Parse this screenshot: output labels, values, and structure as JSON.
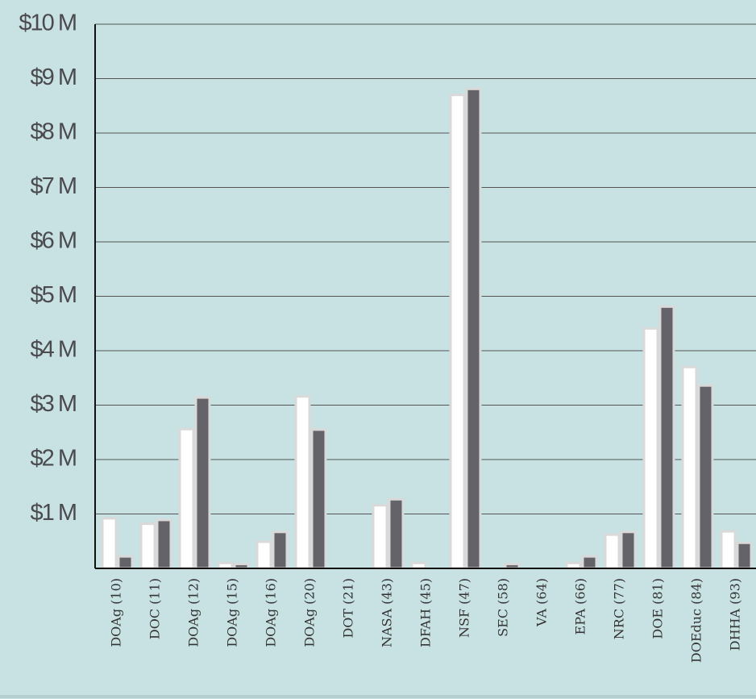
{
  "chart_data": {
    "type": "bar",
    "categories": [
      "DOAg (10)",
      "DOC (11)",
      "DOAg (12)",
      "DOAg (15)",
      "DOAg (16)",
      "DOAg (20)",
      "DOT (21)",
      "NASA (43)",
      "DFAH (45)",
      "NSF (47)",
      "SEC (58)",
      "VA (64)",
      "EPA (66)",
      "NRC (77)",
      "DOE (81)",
      "DOEduc (84)",
      "DHHA (93)"
    ],
    "series": [
      {
        "color": "#ffffff",
        "values": [
          0.92,
          0.82,
          2.56,
          0.1,
          0.49,
          3.16,
          0,
          1.16,
          0.1,
          8.7,
          0,
          0,
          0.1,
          0.62,
          4.41,
          3.7,
          0.68
        ]
      },
      {
        "color": "#636369",
        "values": [
          0.22,
          0.89,
          3.14,
          0.08,
          0.67,
          2.55,
          0,
          1.27,
          0,
          8.81,
          0.08,
          0,
          0.22,
          0.67,
          4.81,
          3.36,
          0.47
        ]
      }
    ],
    "ylim": [
      0,
      10
    ],
    "yticks": [
      {
        "value": 1,
        "label": "$1 M"
      },
      {
        "value": 2,
        "label": "$2 M"
      },
      {
        "value": 3,
        "label": "$3 M"
      },
      {
        "value": 4,
        "label": "$4 M"
      },
      {
        "value": 5,
        "label": "$5 M"
      },
      {
        "value": 6,
        "label": "$6 M"
      },
      {
        "value": 7,
        "label": "$7 M"
      },
      {
        "value": 8,
        "label": "$8 M"
      },
      {
        "value": 9,
        "label": "$9 M"
      },
      {
        "value": 10,
        "label": "$10 M"
      }
    ],
    "grid": true
  }
}
